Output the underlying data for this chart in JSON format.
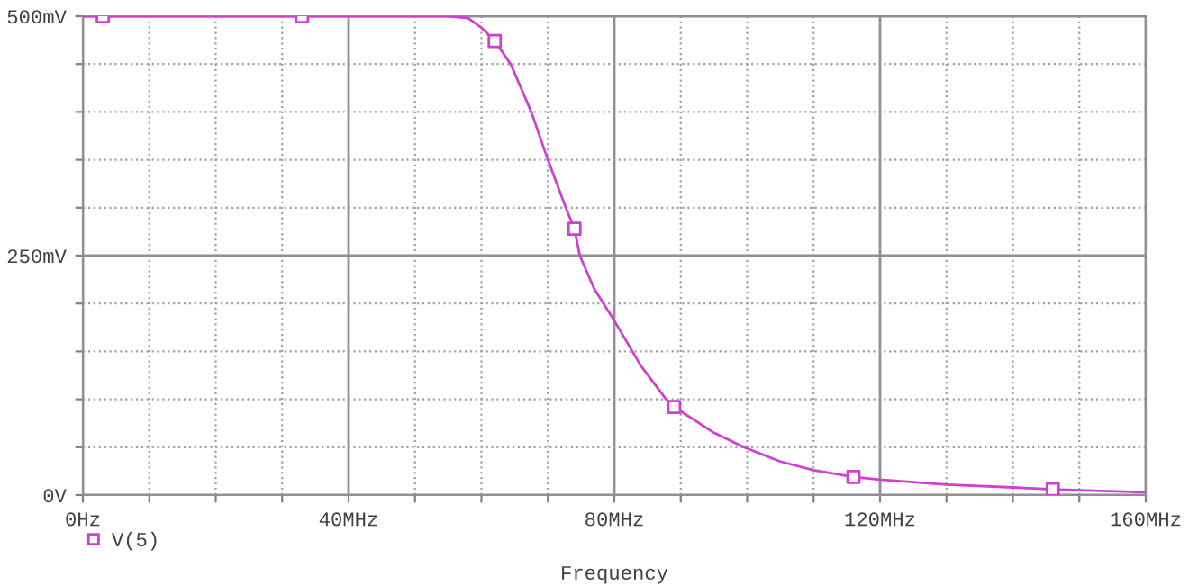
{
  "chart_data": {
    "type": "line",
    "xlabel": "Frequency",
    "legend": "bottom left",
    "grid": true,
    "xlim": [
      0,
      160
    ],
    "ylim": [
      0,
      500
    ],
    "xticks": [
      {
        "value": 0,
        "label": "0Hz"
      },
      {
        "value": 10,
        "label": null
      },
      {
        "value": 20,
        "label": null
      },
      {
        "value": 30,
        "label": null
      },
      {
        "value": 40,
        "label": "40MHz"
      },
      {
        "value": 50,
        "label": null
      },
      {
        "value": 60,
        "label": null
      },
      {
        "value": 70,
        "label": null
      },
      {
        "value": 80,
        "label": "80MHz"
      },
      {
        "value": 90,
        "label": null
      },
      {
        "value": 100,
        "label": null
      },
      {
        "value": 110,
        "label": null
      },
      {
        "value": 120,
        "label": "120MHz"
      },
      {
        "value": 130,
        "label": null
      },
      {
        "value": 140,
        "label": null
      },
      {
        "value": 150,
        "label": null
      },
      {
        "value": 160,
        "label": "160MHz"
      }
    ],
    "yticks": [
      {
        "value": 0,
        "label": "0V"
      },
      {
        "value": 50,
        "label": null
      },
      {
        "value": 100,
        "label": null
      },
      {
        "value": 150,
        "label": null
      },
      {
        "value": 200,
        "label": null
      },
      {
        "value": 250,
        "label": "250mV"
      },
      {
        "value": 300,
        "label": null
      },
      {
        "value": 350,
        "label": null
      },
      {
        "value": 400,
        "label": null
      },
      {
        "value": 450,
        "label": null
      },
      {
        "value": 500,
        "label": "500mV"
      }
    ],
    "series": [
      {
        "color": "#d040d0",
        "marker": "none",
        "x": [
          0,
          3,
          33,
          55,
          58,
          60,
          62,
          64.4,
          67.5,
          70,
          72.7,
          74,
          74.8,
          77,
          80,
          84,
          87.8,
          89,
          95,
          99.5,
          105,
          110,
          116,
          120,
          130,
          140,
          146,
          150,
          160
        ],
        "values": [
          500,
          500,
          500,
          500,
          498,
          488,
          474,
          450,
          400,
          350,
          300,
          278,
          250,
          215,
          182,
          135,
          100,
          92,
          65,
          50,
          35,
          26,
          19,
          16,
          11,
          8,
          6,
          5,
          3
        ]
      },
      {
        "type": "scatter",
        "name": "V(5)",
        "color": "#d040d0",
        "marker": "square",
        "x": [
          3,
          33,
          62,
          74,
          89,
          116,
          146
        ],
        "values": [
          500,
          500,
          474,
          278,
          92,
          19,
          6
        ]
      }
    ]
  }
}
